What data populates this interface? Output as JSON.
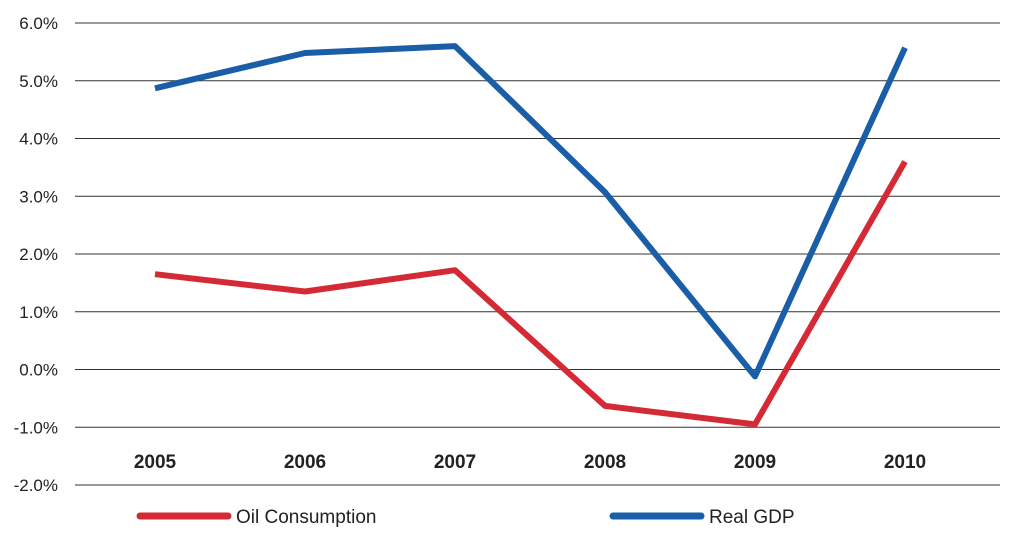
{
  "chart_data": {
    "type": "line",
    "categories": [
      "2005",
      "2006",
      "2007",
      "2008",
      "2009",
      "2010"
    ],
    "series": [
      {
        "name": "Oil Consumption",
        "color": "#d42a35",
        "values": [
          1.65,
          1.35,
          1.72,
          -0.63,
          -0.95,
          3.6
        ]
      },
      {
        "name": "Real GDP",
        "color": "#1a5ea8",
        "values": [
          4.87,
          5.48,
          5.6,
          3.07,
          -0.12,
          5.57
        ]
      }
    ],
    "yticks": [
      "6.0%",
      "5.0%",
      "4.0%",
      "3.0%",
      "2.0%",
      "1.0%",
      "0.0%",
      "-1.0%",
      "-2.0%"
    ],
    "ylim": [
      -2,
      6
    ],
    "grid": true,
    "legend_position": "bottom"
  }
}
